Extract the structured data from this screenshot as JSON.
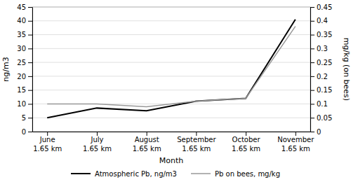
{
  "chart_data": {
    "type": "line",
    "categories": [
      "June\n1.65 km",
      "July\n1.65 km",
      "August\n1.65 km",
      "September\n1.65 km",
      "October\n1.65 km",
      "November\n1.65 km"
    ],
    "series": [
      {
        "name": "Atmospheric Pb, ng/m3",
        "color": "#000000",
        "values": [
          5.0,
          8.5,
          7.5,
          11.0,
          12.0,
          40.5
        ]
      },
      {
        "name": "Pb on bees, mg/kg",
        "color": "#999999",
        "values": [
          0.1,
          0.1,
          0.09,
          0.11,
          0.12,
          0.38
        ],
        "axis": "y2"
      }
    ],
    "xlabel": "Month",
    "ylabel": "ng/m3",
    "y2label": "mg/kg (on bees)",
    "ylim": [
      0,
      45
    ],
    "yticks": [
      0,
      5,
      10,
      15,
      20,
      25,
      30,
      35,
      40,
      45
    ],
    "y2lim": [
      0,
      0.45
    ],
    "y2ticks": [
      0,
      0.05,
      0.1,
      0.15,
      0.2,
      0.25,
      0.3,
      0.35,
      0.4,
      0.45
    ],
    "grid": true,
    "legend": "bottom"
  }
}
